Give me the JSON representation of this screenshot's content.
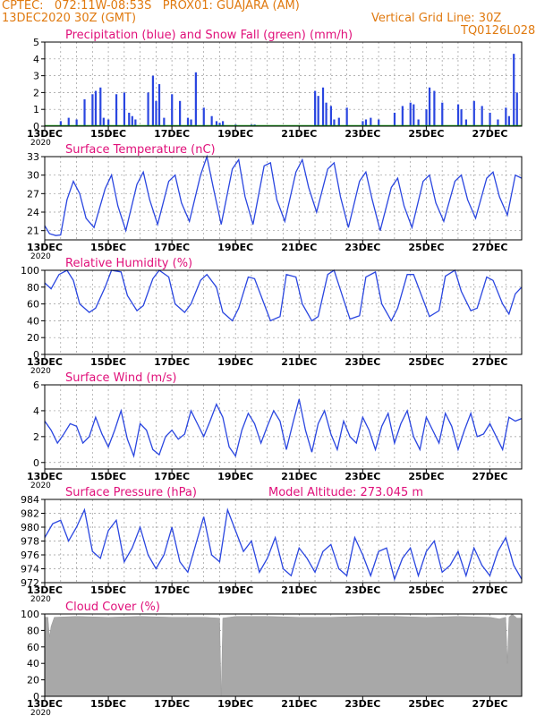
{
  "header": {
    "line1": "CPTEC:   072:11W-08:53S   PROX01: GUAJARA (AM)",
    "line2": "13DEC2020 30Z (GMT)",
    "grid_note": "Vertical Grid Line: 30Z",
    "code": "TQ0126L028"
  },
  "x_axis": {
    "ticks": [
      "13DEC",
      "15DEC",
      "17DEC",
      "19DEC",
      "21DEC",
      "23DEC",
      "25DEC",
      "27DEC"
    ],
    "year_label": "2020",
    "range_days": [
      0,
      15
    ]
  },
  "colors": {
    "blue": "#2a46e0",
    "green": "#10a010",
    "magenta": "#e0107a",
    "orange": "#e07a10",
    "gray": "#a8a8a8"
  },
  "chart_data": [
    {
      "type": "bar",
      "title": "Precipitation (blue) and Snow Fall (green) (mm/h)",
      "ylim": [
        0,
        5
      ],
      "yticks": [
        "0",
        "1",
        "2",
        "3",
        "4",
        "5"
      ],
      "grid": true,
      "series": [
        {
          "name": "Precipitation",
          "x": [
            0.5,
            0.75,
            1.0,
            1.25,
            1.5,
            1.6,
            1.75,
            1.85,
            2.0,
            2.25,
            2.5,
            2.65,
            2.75,
            2.85,
            3.25,
            3.4,
            3.5,
            3.6,
            3.75,
            4.0,
            4.25,
            4.5,
            4.6,
            4.75,
            5.0,
            5.25,
            5.4,
            5.5,
            5.6,
            6.0,
            6.5,
            6.6,
            8.5,
            8.6,
            8.75,
            8.85,
            9.0,
            9.1,
            9.25,
            9.5,
            10.0,
            10.1,
            10.25,
            10.5,
            11.0,
            11.25,
            11.5,
            11.6,
            11.75,
            12.0,
            12.1,
            12.25,
            12.5,
            13.0,
            13.1,
            13.25,
            13.5,
            13.75,
            14.0,
            14.25,
            14.5,
            14.6,
            14.75,
            14.85
          ],
          "values": [
            0.3,
            0.5,
            0.4,
            1.6,
            1.9,
            2.1,
            2.3,
            0.5,
            0.4,
            1.9,
            2.0,
            0.8,
            0.6,
            0.4,
            2.0,
            3.0,
            1.5,
            2.5,
            0.5,
            1.9,
            1.5,
            0.5,
            0.4,
            3.2,
            1.1,
            0.6,
            0.3,
            0.2,
            0.3,
            0.1,
            0.1,
            0.1,
            2.1,
            1.8,
            2.3,
            1.4,
            1.2,
            0.4,
            0.5,
            1.1,
            0.3,
            0.4,
            0.5,
            0.4,
            0.8,
            1.2,
            1.4,
            1.3,
            0.4,
            1.0,
            2.3,
            2.1,
            1.4,
            1.3,
            1.0,
            0.4,
            1.5,
            1.2,
            0.8,
            0.4,
            1.1,
            0.6,
            4.3,
            2.0
          ]
        },
        {
          "name": "Snow Fall",
          "x": [
            0,
            15
          ],
          "values": [
            0,
            0
          ]
        }
      ]
    },
    {
      "type": "line",
      "title": "Surface Temperature (nC)",
      "ylim": [
        19.5,
        33
      ],
      "yticks": [
        "21",
        "24",
        "27",
        "30",
        "33"
      ],
      "grid": true,
      "series": [
        {
          "name": "Temperature",
          "x": [
            0,
            0.15,
            0.35,
            0.5,
            0.7,
            0.9,
            1.1,
            1.3,
            1.55,
            1.9,
            2.1,
            2.3,
            2.55,
            2.9,
            3.1,
            3.3,
            3.55,
            3.9,
            4.1,
            4.3,
            4.55,
            4.9,
            5.1,
            5.3,
            5.55,
            5.9,
            6.1,
            6.3,
            6.55,
            6.9,
            7.1,
            7.3,
            7.55,
            7.9,
            8.1,
            8.3,
            8.55,
            8.9,
            9.1,
            9.3,
            9.55,
            9.9,
            10.1,
            10.3,
            10.55,
            10.9,
            11.1,
            11.3,
            11.55,
            11.9,
            12.1,
            12.3,
            12.55,
            12.9,
            13.1,
            13.3,
            13.55,
            13.9,
            14.1,
            14.3,
            14.55,
            14.8,
            15.0
          ],
          "values": [
            21.8,
            20.5,
            20.2,
            20.3,
            26.0,
            29.0,
            27.0,
            23.0,
            21.5,
            27.8,
            30.0,
            25.0,
            21.0,
            28.5,
            30.5,
            26.0,
            22.0,
            29.0,
            30.0,
            25.5,
            22.5,
            30.0,
            33.0,
            28.0,
            22.0,
            31.0,
            32.5,
            26.5,
            22.0,
            31.5,
            32.0,
            26.0,
            22.5,
            30.5,
            32.5,
            28.0,
            24.0,
            31.0,
            32.0,
            26.5,
            21.5,
            29.0,
            30.5,
            26.0,
            21.0,
            28.0,
            29.5,
            25.0,
            21.5,
            29.0,
            30.0,
            25.5,
            22.5,
            29.0,
            30.0,
            26.0,
            23.0,
            29.5,
            30.5,
            26.5,
            23.5,
            30.0,
            29.5
          ]
        }
      ]
    },
    {
      "type": "line",
      "title": "Relative Humidity (%)",
      "ylim": [
        0,
        100
      ],
      "yticks": [
        "0",
        "20",
        "40",
        "60",
        "80",
        "100"
      ],
      "grid": true,
      "series": [
        {
          "name": "Relative Humidity",
          "x": [
            0,
            0.2,
            0.45,
            0.7,
            0.9,
            1.1,
            1.4,
            1.6,
            1.9,
            2.1,
            2.4,
            2.6,
            2.9,
            3.1,
            3.4,
            3.6,
            3.9,
            4.1,
            4.4,
            4.6,
            4.9,
            5.1,
            5.4,
            5.6,
            5.9,
            6.1,
            6.4,
            6.6,
            6.9,
            7.1,
            7.4,
            7.6,
            7.9,
            8.1,
            8.4,
            8.6,
            8.9,
            9.1,
            9.4,
            9.6,
            9.9,
            10.1,
            10.4,
            10.6,
            10.9,
            11.1,
            11.4,
            11.6,
            11.9,
            12.1,
            12.4,
            12.6,
            12.9,
            13.1,
            13.4,
            13.6,
            13.9,
            14.1,
            14.4,
            14.6,
            14.8,
            15.0
          ],
          "values": [
            85,
            78,
            95,
            100,
            88,
            60,
            50,
            55,
            80,
            100,
            98,
            70,
            52,
            58,
            90,
            100,
            92,
            60,
            50,
            60,
            88,
            95,
            80,
            50,
            40,
            55,
            92,
            90,
            60,
            40,
            45,
            95,
            92,
            60,
            40,
            45,
            95,
            100,
            65,
            42,
            46,
            92,
            98,
            60,
            40,
            55,
            95,
            95,
            65,
            45,
            52,
            93,
            100,
            75,
            52,
            55,
            92,
            88,
            60,
            48,
            72,
            80
          ]
        }
      ]
    },
    {
      "type": "line",
      "title": "Surface Wind (m/s)",
      "ylim": [
        -0.5,
        6
      ],
      "yticks": [
        "0",
        "2",
        "4",
        "6"
      ],
      "grid": true,
      "series": [
        {
          "name": "Wind Speed",
          "x": [
            0,
            0.2,
            0.4,
            0.6,
            0.8,
            1.0,
            1.2,
            1.4,
            1.6,
            1.8,
            2.0,
            2.2,
            2.4,
            2.6,
            2.8,
            3.0,
            3.2,
            3.4,
            3.6,
            3.8,
            4.0,
            4.2,
            4.4,
            4.6,
            4.8,
            5.0,
            5.2,
            5.4,
            5.6,
            5.8,
            6.0,
            6.2,
            6.4,
            6.6,
            6.8,
            7.0,
            7.2,
            7.4,
            7.6,
            7.8,
            8.0,
            8.2,
            8.4,
            8.6,
            8.8,
            9.0,
            9.2,
            9.4,
            9.6,
            9.8,
            10.0,
            10.2,
            10.4,
            10.6,
            10.8,
            11.0,
            11.2,
            11.4,
            11.6,
            11.8,
            12.0,
            12.2,
            12.4,
            12.6,
            12.8,
            13.0,
            13.2,
            13.4,
            13.6,
            13.8,
            14.0,
            14.2,
            14.4,
            14.6,
            14.8,
            15.0
          ],
          "values": [
            3.2,
            2.5,
            1.5,
            2.2,
            3.0,
            2.8,
            1.5,
            2.0,
            3.5,
            2.2,
            1.2,
            2.5,
            4.0,
            1.8,
            0.5,
            3.0,
            2.5,
            1.0,
            0.6,
            2.0,
            2.5,
            1.8,
            2.2,
            4.0,
            3.0,
            2.0,
            3.2,
            4.5,
            3.5,
            1.2,
            0.5,
            2.5,
            3.8,
            3.0,
            1.5,
            2.8,
            4.0,
            3.2,
            1.0,
            3.0,
            4.9,
            2.5,
            0.8,
            3.0,
            4.0,
            2.2,
            1.0,
            3.2,
            2.0,
            1.5,
            3.5,
            2.5,
            1.0,
            2.8,
            3.8,
            1.5,
            3.0,
            4.0,
            2.0,
            1.0,
            3.5,
            2.5,
            1.5,
            3.8,
            2.8,
            1.0,
            2.5,
            3.8,
            2.0,
            2.2,
            3.0,
            2.0,
            1.0,
            3.5,
            3.2,
            3.4
          ]
        }
      ]
    },
    {
      "type": "line",
      "title": "Surface Pressure (hPa)",
      "annotation": "Model Altitude: 273.045 m",
      "ylim": [
        972,
        984
      ],
      "yticks": [
        "972",
        "974",
        "976",
        "978",
        "980",
        "982",
        "984"
      ],
      "grid": true,
      "series": [
        {
          "name": "Pressure",
          "x": [
            0,
            0.25,
            0.5,
            0.75,
            1.0,
            1.25,
            1.5,
            1.75,
            2.0,
            2.25,
            2.5,
            2.75,
            3.0,
            3.25,
            3.5,
            3.75,
            4.0,
            4.25,
            4.5,
            4.75,
            5.0,
            5.25,
            5.5,
            5.75,
            6.0,
            6.25,
            6.5,
            6.75,
            7.0,
            7.25,
            7.5,
            7.75,
            8.0,
            8.25,
            8.5,
            8.75,
            9.0,
            9.25,
            9.5,
            9.75,
            10.0,
            10.25,
            10.5,
            10.75,
            11.0,
            11.25,
            11.5,
            11.75,
            12.0,
            12.25,
            12.5,
            12.75,
            13.0,
            13.25,
            13.5,
            13.75,
            14.0,
            14.25,
            14.5,
            14.75,
            15.0
          ],
          "values": [
            978.5,
            980.5,
            981.0,
            978.0,
            980.0,
            982.5,
            976.5,
            975.5,
            979.5,
            981.0,
            975.0,
            977.0,
            980.0,
            976.0,
            974.0,
            976.0,
            980.0,
            975.0,
            973.5,
            977.5,
            981.5,
            976.0,
            975.0,
            982.5,
            979.5,
            976.5,
            978.0,
            973.5,
            975.5,
            978.5,
            974.0,
            973.0,
            977.0,
            975.5,
            973.5,
            976.5,
            977.5,
            974.0,
            973.0,
            978.5,
            976.0,
            973.0,
            976.5,
            977.0,
            972.5,
            975.5,
            977.0,
            973.0,
            976.5,
            978.0,
            973.5,
            974.5,
            976.5,
            973.0,
            977.0,
            974.5,
            973.0,
            976.5,
            978.5,
            974.5,
            972.5
          ]
        }
      ]
    },
    {
      "type": "area",
      "title": "Cloud Cover (%)",
      "ylim": [
        0,
        100
      ],
      "yticks": [
        "0",
        "20",
        "40",
        "60",
        "80",
        "100"
      ],
      "grid": true,
      "series": [
        {
          "name": "Cloud Cover",
          "x": [
            0,
            0.1,
            0.15,
            0.2,
            0.3,
            1.0,
            2.0,
            3.0,
            4.0,
            5.0,
            5.5,
            5.55,
            5.6,
            6.0,
            7.0,
            8.0,
            9.0,
            10.0,
            11.0,
            12.0,
            13.0,
            14.0,
            14.3,
            14.5,
            14.55,
            14.6,
            14.7,
            14.85,
            15.0
          ],
          "values": [
            96,
            96,
            72,
            85,
            96,
            97,
            96,
            97,
            96,
            96,
            95,
            0,
            95,
            97,
            97,
            96,
            96,
            97,
            97,
            96,
            97,
            96,
            94,
            96,
            40,
            96,
            100,
            95,
            95
          ]
        }
      ]
    }
  ]
}
